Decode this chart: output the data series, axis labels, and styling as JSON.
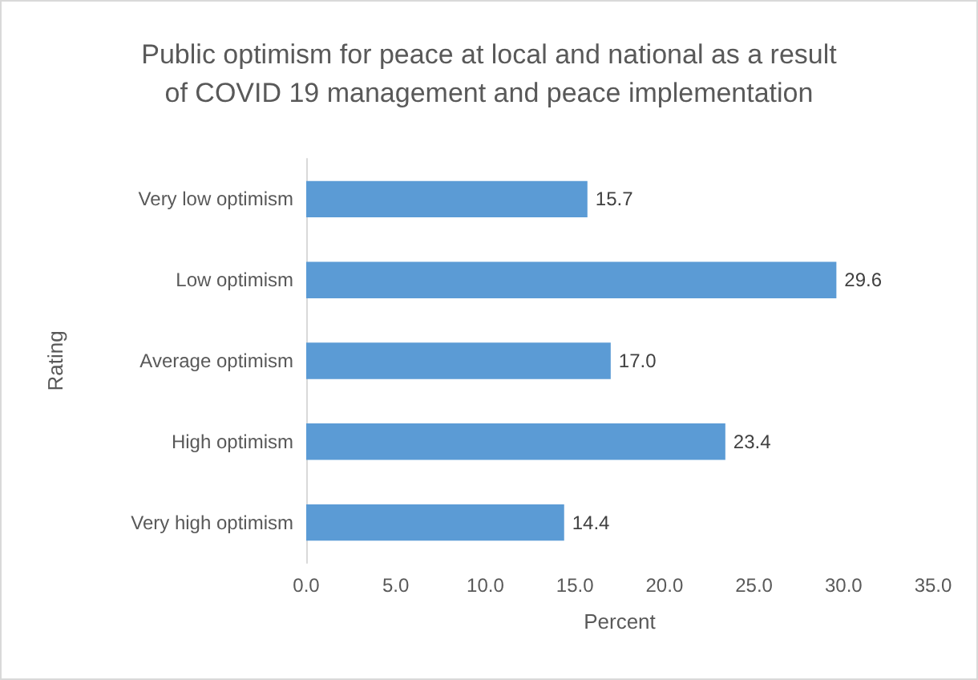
{
  "chart_data": {
    "type": "bar",
    "orientation": "horizontal",
    "title": "Public optimism for peace at local and national as a result\nof COVID 19 management and peace implementation",
    "xlabel": "Percent",
    "ylabel": "Rating",
    "categories": [
      "Very low optimism",
      "Low optimism",
      "Average optimism",
      "High optimism",
      "Very high optimism"
    ],
    "values": [
      15.7,
      29.6,
      17.0,
      23.4,
      14.4
    ],
    "value_labels": [
      "15.7",
      "29.6",
      "17.0",
      "23.4",
      "14.4"
    ],
    "color": "#5b9bd5",
    "xlim": [
      0,
      35
    ],
    "xticks": [
      {
        "value": 0,
        "label": "0.0"
      },
      {
        "value": 5,
        "label": "5.0"
      },
      {
        "value": 10,
        "label": "10.0"
      },
      {
        "value": 15,
        "label": "15.0"
      },
      {
        "value": 20,
        "label": "20.0"
      },
      {
        "value": 25,
        "label": "25.0"
      },
      {
        "value": 30,
        "label": "30.0"
      },
      {
        "value": 35,
        "label": "35.0"
      }
    ],
    "grid": false
  }
}
